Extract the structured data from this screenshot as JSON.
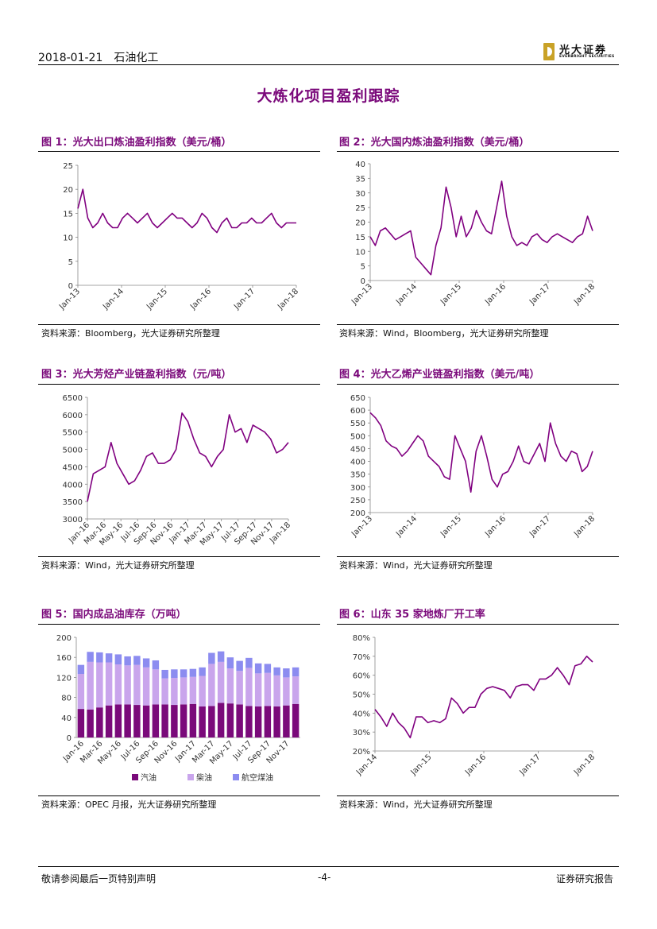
{
  "header": {
    "date": "2018-01-21",
    "sector": "石油化工",
    "logo_cn": "光大证券",
    "logo_en": "EVERBRIGHT SECURITIES"
  },
  "page_title": "大炼化项目盈利跟踪",
  "figures": [
    {
      "title": "图 1：光大出口炼油盈利指数（美元/桶）",
      "source": "资料来源：Bloomberg，光大证券研究所整理"
    },
    {
      "title": "图 2：光大国内炼油盈利指数（美元/桶）",
      "source": "资料来源：Wind，Bloomberg，光大证券研究所整理"
    },
    {
      "title": "图 3：光大芳烃产业链盈利指数（元/吨）",
      "source": "资料来源：Wind，光大证券研究所整理"
    },
    {
      "title": "图 4：光大乙烯产业链盈利指数（美元/吨）",
      "source": "资料来源：Wind，光大证券研究所整理"
    },
    {
      "title": "图 5：国内成品油库存（万吨）",
      "source": "资料来源：OPEC 月报，光大证券研究所整理"
    },
    {
      "title": "图 6：山东 35 家地炼厂开工率",
      "source": "资料来源：Wind，光大证券研究所整理"
    }
  ],
  "footer": {
    "left": "敬请参阅最后一页特别声明",
    "center": "-4-",
    "right": "证券研究报告"
  },
  "colors": {
    "accent": "#7b0a7b",
    "line": "#800080",
    "bar_dark": "#7a0a7a",
    "bar_mid": "#c9a5ec",
    "bar_light": "#8c8cf0"
  },
  "chart_data": [
    {
      "type": "line",
      "series": [
        {
          "values": [
            16,
            20,
            14,
            12,
            13,
            15,
            13,
            12,
            12,
            14,
            15,
            14,
            13,
            14,
            15,
            13,
            12,
            13,
            14,
            15,
            14,
            14,
            13,
            12,
            13,
            15,
            14,
            12,
            11,
            13,
            14,
            12,
            12,
            13,
            13,
            14,
            13,
            13,
            14,
            15,
            13,
            12,
            13,
            13,
            13
          ]
        }
      ],
      "xticks": [
        "Jan-13",
        "Jan-14",
        "Jan-15",
        "Jan-16",
        "Jan-17",
        "Jan-18"
      ],
      "yticks": [
        "0",
        "5",
        "10",
        "15",
        "20",
        "25"
      ],
      "ylim": [
        0,
        25
      ]
    },
    {
      "type": "line",
      "series": [
        {
          "values": [
            15,
            12,
            17,
            18,
            16,
            14,
            15,
            16,
            17,
            8,
            6,
            4,
            2,
            12,
            18,
            32,
            25,
            15,
            22,
            15,
            18,
            24,
            20,
            17,
            16,
            25,
            34,
            22,
            15,
            12,
            13,
            12,
            15,
            16,
            14,
            13,
            15,
            16,
            15,
            14,
            13,
            15,
            16,
            22,
            17
          ]
        }
      ],
      "xticks": [
        "Jan-13",
        "Jan-14",
        "Jan-15",
        "Jan-16",
        "Jan-17",
        "Jan-18"
      ],
      "yticks": [
        "0",
        "5",
        "10",
        "15",
        "20",
        "25",
        "30",
        "35",
        "40"
      ],
      "ylim": [
        0,
        40
      ]
    },
    {
      "type": "line",
      "series": [
        {
          "values": [
            3500,
            4300,
            4400,
            4500,
            5200,
            4600,
            4300,
            4000,
            4100,
            4400,
            4800,
            4900,
            4600,
            4600,
            4700,
            5000,
            6050,
            5800,
            5300,
            4900,
            4800,
            4500,
            4800,
            5000,
            6000,
            5500,
            5600,
            5200,
            5700,
            5600,
            5500,
            5300,
            4900,
            5000,
            5200
          ]
        }
      ],
      "xticks": [
        "Jan-16",
        "Mar-16",
        "May-16",
        "Jul-16",
        "Sep-16",
        "Nov-16",
        "Jan-17",
        "Mar-17",
        "May-17",
        "Jul-17",
        "Sep-17",
        "Nov-17",
        "Jan-18"
      ],
      "yticks": [
        "3000",
        "3500",
        "4000",
        "4500",
        "5000",
        "5500",
        "6000",
        "6500"
      ],
      "ylim": [
        3000,
        6500
      ]
    },
    {
      "type": "line",
      "series": [
        {
          "values": [
            590,
            570,
            540,
            480,
            460,
            450,
            420,
            440,
            470,
            500,
            480,
            420,
            400,
            380,
            340,
            330,
            500,
            450,
            400,
            280,
            440,
            500,
            420,
            330,
            300,
            350,
            360,
            400,
            460,
            400,
            390,
            430,
            470,
            400,
            550,
            470,
            420,
            400,
            440,
            430,
            360,
            380,
            440
          ]
        }
      ],
      "xticks": [
        "Jan-13",
        "Jan-14",
        "Jan-15",
        "Jan-16",
        "Jan-17",
        "Jan-18"
      ],
      "yticks": [
        "200",
        "250",
        "300",
        "350",
        "400",
        "450",
        "500",
        "550",
        "600",
        "650"
      ],
      "ylim": [
        200,
        650
      ]
    },
    {
      "type": "bar",
      "stacked": true,
      "categories": [
        "Jan-16",
        "Feb-16",
        "Mar-16",
        "Apr-16",
        "May-16",
        "Jun-16",
        "Jul-16",
        "Aug-16",
        "Sep-16",
        "Oct-16",
        "Nov-16",
        "Dec-16",
        "Jan-17",
        "Feb-17",
        "Mar-17",
        "Apr-17",
        "May-17",
        "Jun-17",
        "Jul-17",
        "Aug-17",
        "Sep-17",
        "Oct-17",
        "Nov-17",
        "Dec-17"
      ],
      "xticks": [
        "Jan-16",
        "Mar-16",
        "May-16",
        "Jul-16",
        "Sep-16",
        "Nov-16",
        "Jan-17",
        "Mar-17",
        "May-17",
        "Jul-17",
        "Sep-17",
        "Nov-17"
      ],
      "series": [
        {
          "name": "汽油",
          "values": [
            57,
            56,
            60,
            64,
            66,
            66,
            65,
            64,
            66,
            66,
            65,
            66,
            67,
            62,
            63,
            69,
            68,
            66,
            63,
            62,
            63,
            62,
            64,
            67
          ]
        },
        {
          "name": "柴油",
          "values": [
            70,
            95,
            90,
            86,
            80,
            78,
            80,
            76,
            70,
            52,
            54,
            54,
            54,
            61,
            84,
            82,
            70,
            67,
            76,
            66,
            66,
            62,
            56,
            55
          ]
        },
        {
          "name": "航空煤油",
          "values": [
            18,
            20,
            20,
            18,
            20,
            18,
            18,
            18,
            18,
            17,
            17,
            16,
            16,
            17,
            22,
            21,
            22,
            20,
            20,
            20,
            18,
            16,
            18,
            18
          ]
        }
      ],
      "yticks": [
        "0",
        "40",
        "80",
        "120",
        "160",
        "200"
      ],
      "ylim": [
        0,
        200
      ]
    },
    {
      "type": "line",
      "series": [
        {
          "values": [
            42,
            38,
            33,
            40,
            35,
            32,
            27,
            38,
            38,
            35,
            36,
            35,
            37,
            48,
            45,
            40,
            43,
            43,
            50,
            53,
            54,
            53,
            52,
            48,
            54,
            55,
            55,
            52,
            58,
            58,
            60,
            64,
            60,
            55,
            65,
            66,
            70,
            67
          ]
        }
      ],
      "xticks": [
        "Jan-14",
        "Jan-15",
        "Jan-16",
        "Jan-17",
        "Jan-18"
      ],
      "yticks": [
        "20%",
        "30%",
        "40%",
        "50%",
        "60%",
        "70%",
        "80%"
      ],
      "ylim": [
        20,
        80
      ]
    }
  ]
}
